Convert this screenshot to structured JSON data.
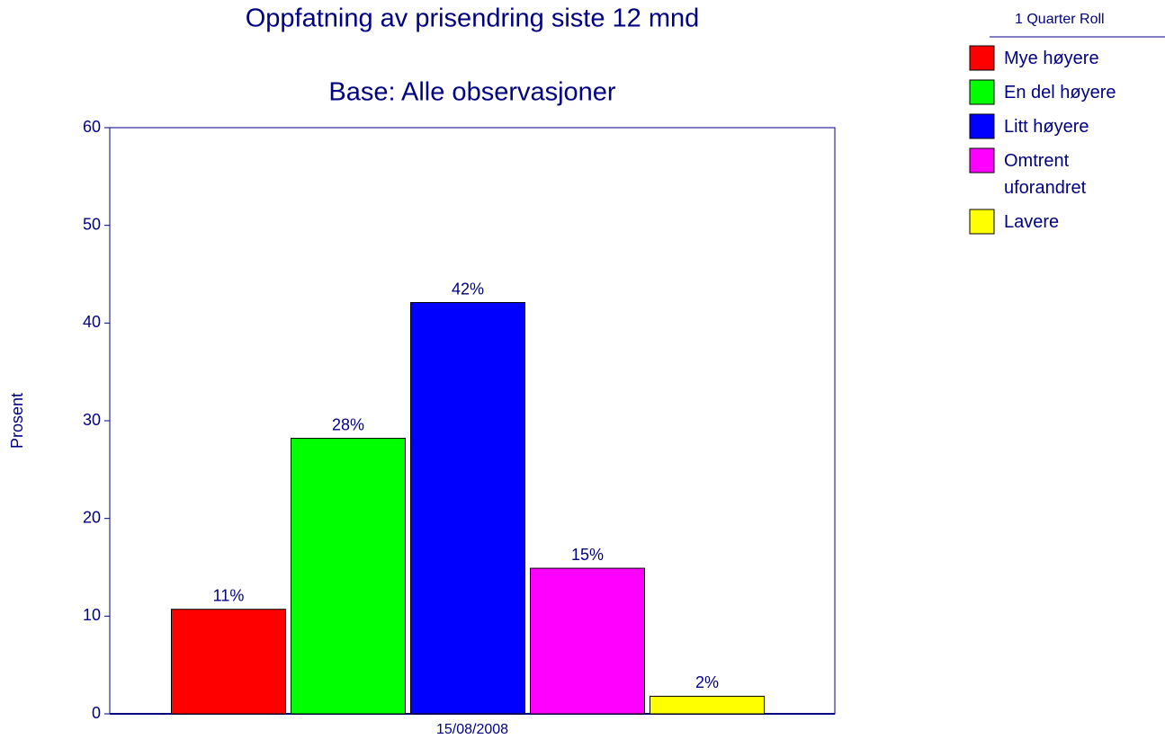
{
  "chart_data": {
    "type": "bar",
    "title": "Oppfatning av prisendring siste 12 mnd",
    "subtitle": "Base:  Alle observasjoner",
    "y_label": "Prosent",
    "legend_title": "1 Quarter Roll",
    "legend": "top-right",
    "categories": [
      "15/08/2008"
    ],
    "series": [
      {
        "name": "Mye høyere",
        "color": "#ff0000",
        "values": [
          10.7
        ],
        "value_labels": [
          "11%"
        ]
      },
      {
        "name": "En del høyere",
        "color": "#00ff00",
        "values": [
          28.2
        ],
        "value_labels": [
          "28%"
        ]
      },
      {
        "name": "Litt høyere",
        "color": "#0000ff",
        "values": [
          42.1
        ],
        "value_labels": [
          "42%"
        ]
      },
      {
        "name": "Omtrent uforandret",
        "color": "#ff00ff",
        "values": [
          14.9
        ],
        "value_labels": [
          "15%"
        ]
      },
      {
        "name": "Lavere",
        "color": "#ffff00",
        "values": [
          1.8
        ],
        "value_labels": [
          "2%"
        ]
      }
    ],
    "ylim": [
      0,
      60
    ],
    "yticks": [
      0,
      10,
      20,
      30,
      40,
      50,
      60
    ]
  }
}
